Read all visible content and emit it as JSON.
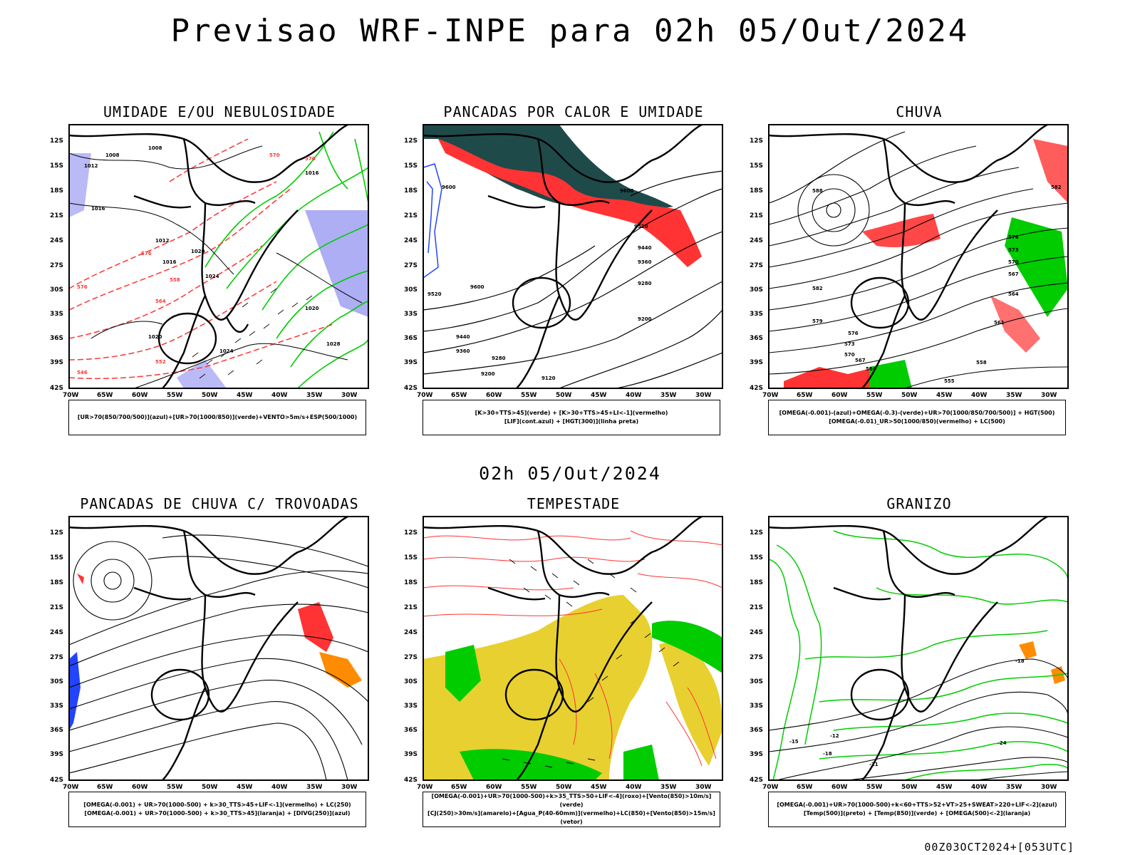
{
  "main_title": "Previsao WRF-INPE  para 02h 05/Out/2024",
  "mid_title": "02h 05/Out/2024",
  "footer": "00Z03OCT2024+[053UTC]",
  "lat_labels": [
    "12S",
    "15S",
    "18S",
    "21S",
    "24S",
    "27S",
    "30S",
    "33S",
    "36S",
    "39S",
    "42S"
  ],
  "lon_labels": [
    "70W",
    "65W",
    "60W",
    "55W",
    "50W",
    "45W",
    "40W",
    "35W",
    "30W"
  ],
  "colors": {
    "humidity_blue": "#8c8cf0",
    "green": "#00cc00",
    "red": "#ff3333",
    "dark_teal": "#1f4a4a",
    "yellow": "#e8d030",
    "orange": "#ff8c00",
    "blue": "#2244ff"
  },
  "panels": [
    {
      "title": "UMIDADE E/OU NEBULOSIDADE",
      "legend": [
        "[UR>70(850/700/500)](azul)+[UR>70(1000/850)](verde)+VENTO>5m/s+ESP(500/1000)"
      ],
      "contour_labels": [
        "1008",
        "1008",
        "1012",
        "1016",
        "1012",
        "1016",
        "1020",
        "1024",
        "1028",
        "1016",
        "1020",
        "1024",
        "1020",
        "576",
        "570",
        "564",
        "558",
        "552",
        "546",
        "570",
        "576"
      ]
    },
    {
      "title": "PANCADAS POR CALOR E UMIDADE",
      "legend": [
        "[K>30+TTS>45](verde) + [K>30+TTS>45+LI<-1](vermelho)",
        "[LIF](cont.azul) + [HGT(300)](linha preta)"
      ],
      "contour_labels": [
        "9600",
        "9600",
        "9520",
        "9440",
        "9360",
        "9280",
        "9200",
        "9120",
        "9600",
        "9520",
        "9440",
        "9360",
        "9280",
        "9200"
      ]
    },
    {
      "title": "CHUVA",
      "legend": [
        "[OMEGA(-0.001)-(azul)+OMEGA(-0.3)-(verde)+UR>70(1000/850/700/500)] + HGT(500)",
        "[OMEGA(-0.01)_UR>50(1000/850)(vermelho) + LC(500)"
      ],
      "contour_labels": [
        "588",
        "582",
        "579",
        "576",
        "573",
        "570",
        "567",
        "564",
        "561",
        "558",
        "555",
        "582",
        "576",
        "573",
        "570",
        "567",
        "564"
      ]
    },
    {
      "title": "PANCADAS DE CHUVA C/ TROVOADAS",
      "legend": [
        "[OMEGA(-0.001) + UR>70(1000-500) + k>30_TTS>45+LIF<-1](vermelho) + LC(250)",
        "[OMEGA(-0.001) + UR>70(1000-500) + k>30_TTS>45](laranja) + [DIVG(250)](azul)"
      ],
      "contour_labels": []
    },
    {
      "title": "TEMPESTADE",
      "legend": [
        "[OMEGA(-0.001)+UR>70(1000-500)+k>35_TTS>50+LIF<-4](roxo)+[Vento(850)>10m/s](verde)",
        "[CJ(250)>30m/s](amarelo)+[Agua_P(40-60mm)](vermelho)+LC(850)+[Vento(850)>15m/s](vetor)"
      ],
      "contour_labels": []
    },
    {
      "title": "GRANIZO",
      "legend": [
        "[OMEGA(-0.001)+UR>70(1000-500)+k<60+TTS>52+VT>25+SWEAT>220+LIF<-2](azul)",
        "[Temp(500)](preto) + [Temp(850)](verde) + [OMEGA(500)<-2](laranja)"
      ],
      "contour_labels": [
        "-18",
        "-12",
        "-15",
        "-18",
        "-21",
        "-24"
      ]
    }
  ]
}
